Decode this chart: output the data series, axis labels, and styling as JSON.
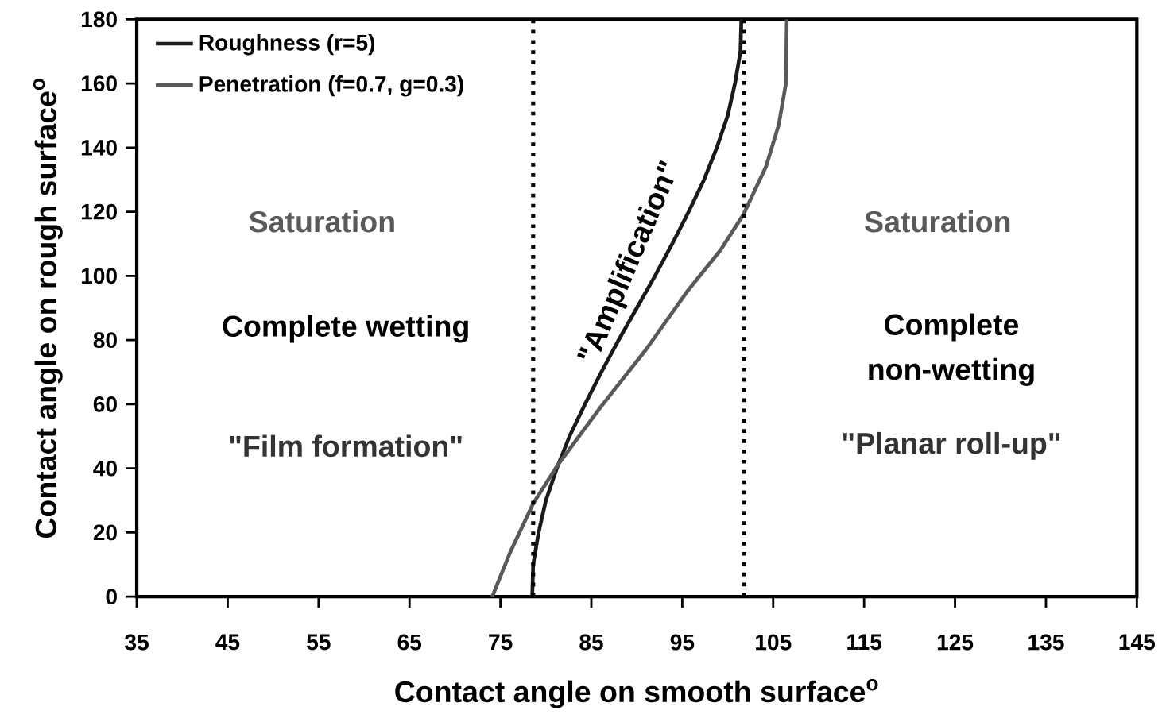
{
  "chart_data": {
    "type": "line",
    "xlabel": "Contact angle on smooth surface$^{o}$",
    "ylabel": "Contact angle on rough surface$^{o}$",
    "xlim": [
      35,
      145
    ],
    "ylim": [
      0,
      180
    ],
    "xticks": [
      35,
      45,
      55,
      65,
      75,
      85,
      95,
      105,
      115,
      125,
      135,
      145
    ],
    "yticks": [
      0,
      20,
      40,
      60,
      80,
      100,
      120,
      140,
      160,
      180
    ],
    "legend": "top left",
    "grid": false,
    "marker": "none",
    "series": [
      {
        "name": "Roughness (r=5)",
        "color": "#1a1a1a",
        "x": [
          78.5,
          78.6,
          79.2,
          80.0,
          81.2,
          82.6,
          84.3,
          86.1,
          88.0,
          90.0,
          92.0,
          93.9,
          95.7,
          97.4,
          98.8,
          100.0,
          100.8,
          101.4,
          101.5
        ],
        "values": [
          0,
          10,
          20,
          30,
          40,
          50,
          60,
          70,
          80,
          90,
          100,
          110,
          120,
          130,
          140,
          150,
          160,
          170,
          180
        ]
      },
      {
        "name": "Penetration (f=0.7, g=0.3)",
        "color": "#595959",
        "x": [
          74.1,
          76.1,
          78.6,
          81.3,
          86.0,
          91.0,
          95.5,
          99.2,
          101.7,
          104.2,
          105.6,
          106.4,
          106.5
        ],
        "values": [
          0,
          14,
          29,
          41,
          59,
          77,
          95,
          108,
          119,
          134,
          147,
          160,
          180
        ]
      }
    ],
    "ref_lines": [
      {
        "axis": "x",
        "value": 78.6,
        "line_style": "dotted",
        "color": "#000000"
      },
      {
        "axis": "x",
        "value": 101.8,
        "line_style": "dotted",
        "color": "#000000"
      }
    ],
    "annotations": [
      "Saturation",
      "Complete wetting",
      "\"Film formation\"",
      "\"Amplification\"",
      "Saturation",
      "Complete non-wetting",
      "\"Planar roll-up\""
    ]
  }
}
